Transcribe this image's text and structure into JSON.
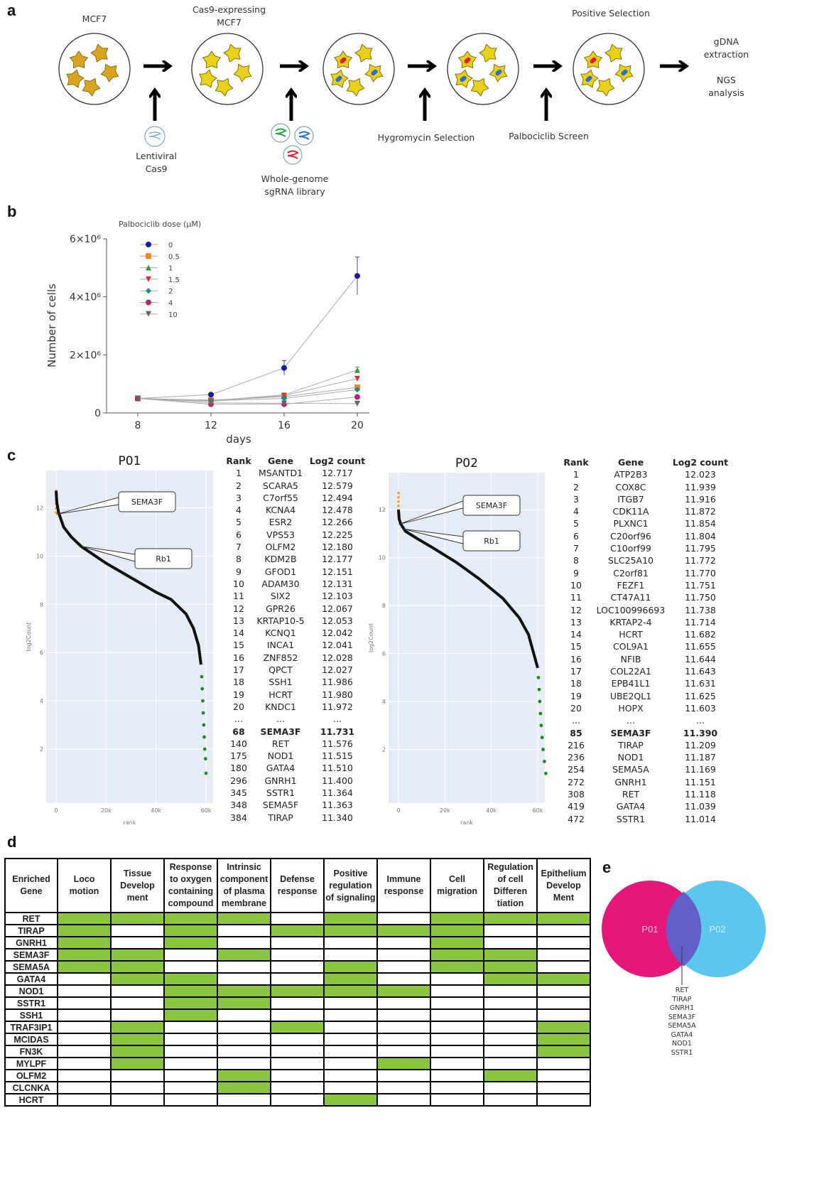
{
  "panels": {
    "a": "a",
    "b": "b",
    "c": "c",
    "d": "d",
    "e": "e"
  },
  "panel_a": {
    "stages": [
      "MCF7",
      "Cas9-expressing MCF7",
      "",
      "",
      "Positive Selection"
    ],
    "inputs": [
      "Lentiviral Cas9",
      "Whole-genome sgRNA library",
      "Hygromycin Selection",
      "Palbociclib Screen"
    ],
    "final": [
      "gDNA extraction",
      "NGS analysis"
    ],
    "colors": {
      "parental_cell": "#d9a520",
      "cas9_cell": "#e6d21a",
      "sgrna_red": "#e0202a",
      "sgrna_blue": "#2a6fd6",
      "sgrna_green": "#22a84a"
    }
  },
  "chart_data": [
    {
      "type": "line",
      "legend_title": "Palbociclib dose (µM)",
      "legend_position": "top-left",
      "xlabel": "days",
      "ylabel": "Number of cells",
      "x": [
        8,
        12,
        16,
        20
      ],
      "xticks": [
        "8",
        "12",
        "16",
        "20"
      ],
      "yticks": [
        "0",
        "2×10⁶",
        "4×10⁶",
        "6×10⁶"
      ],
      "ylim": [
        0,
        6000000
      ],
      "grid": false,
      "series": [
        {
          "name": "0",
          "color": "#1a1aa6",
          "marker": "circle",
          "values": [
            500000,
            630000,
            1550000,
            4720000
          ],
          "error": [
            0,
            0,
            250000,
            650000
          ]
        },
        {
          "name": "0.5",
          "color": "#f08a1c",
          "marker": "square",
          "values": [
            500000,
            440000,
            560000,
            880000
          ],
          "error": [
            0,
            0,
            60000,
            80000
          ]
        },
        {
          "name": "1",
          "color": "#2a9a3a",
          "marker": "triangle-up",
          "values": [
            500000,
            420000,
            620000,
            1480000
          ],
          "error": [
            0,
            0,
            60000,
            100000
          ]
        },
        {
          "name": "1.5",
          "color": "#d6303a",
          "marker": "triangle-down",
          "values": [
            500000,
            400000,
            600000,
            1180000
          ],
          "error": [
            0,
            0,
            60000,
            80000
          ]
        },
        {
          "name": "2",
          "color": "#1a8a8a",
          "marker": "diamond",
          "values": [
            500000,
            420000,
            500000,
            800000
          ],
          "error": [
            0,
            0,
            40000,
            60000
          ]
        },
        {
          "name": "4",
          "color": "#c0206a",
          "marker": "circle",
          "values": [
            500000,
            300000,
            300000,
            550000
          ],
          "error": [
            0,
            0,
            30000,
            40000
          ]
        },
        {
          "name": "10",
          "color": "#666666",
          "marker": "triangle-down",
          "values": [
            500000,
            350000,
            330000,
            320000
          ],
          "error": [
            0,
            0,
            30000,
            30000
          ]
        }
      ]
    },
    {
      "type": "scatter",
      "title": "P01",
      "xlabel": "rank",
      "ylabel": "log2Count",
      "xticks": [
        "0",
        "20k",
        "40k",
        "60k"
      ],
      "yticks": [
        "2",
        "4",
        "6",
        "8",
        "10",
        "12"
      ],
      "xlim": [
        0,
        60000
      ],
      "ylim": [
        0,
        13
      ],
      "curve": [
        [
          0,
          12.7
        ],
        [
          300,
          12.2
        ],
        [
          1000,
          11.8
        ],
        [
          3000,
          11.2
        ],
        [
          6000,
          10.8
        ],
        [
          10000,
          10.4
        ],
        [
          20000,
          9.7
        ],
        [
          30000,
          9.1
        ],
        [
          40000,
          8.5
        ],
        [
          46000,
          8.2
        ],
        [
          52000,
          7.6
        ],
        [
          55000,
          7.0
        ],
        [
          57000,
          6.3
        ],
        [
          58000,
          5.5
        ]
      ],
      "tail": [
        [
          58300,
          5.0
        ],
        [
          58500,
          4.5
        ],
        [
          58700,
          4.0
        ],
        [
          58900,
          3.5
        ],
        [
          59100,
          3.0
        ],
        [
          59300,
          2.5
        ],
        [
          59500,
          2.0
        ],
        [
          59800,
          1.6
        ],
        [
          60000,
          1.0
        ]
      ],
      "annotations": [
        "SEMA3F",
        "Rb1"
      ],
      "annotation_points": [
        [
          68,
          11.73
        ],
        [
          10000,
          10.4
        ]
      ],
      "colors": {
        "top": "#f0a020",
        "main": "#111111",
        "bottom": "#1a8a1a",
        "background": "#e5ecf6"
      }
    },
    {
      "type": "scatter",
      "title": "P02",
      "xlabel": "rank",
      "ylabel": "log2Count",
      "xticks": [
        "0",
        "20k",
        "40k",
        "60k"
      ],
      "yticks": [
        "2",
        "4",
        "6",
        "8",
        "10",
        "12"
      ],
      "xlim": [
        0,
        60000
      ],
      "ylim": [
        0,
        13
      ],
      "curve": [
        [
          0,
          12.0
        ],
        [
          300,
          11.6
        ],
        [
          1000,
          11.4
        ],
        [
          3000,
          11.1
        ],
        [
          8000,
          10.8
        ],
        [
          15000,
          10.4
        ],
        [
          25000,
          9.8
        ],
        [
          35000,
          9.1
        ],
        [
          45000,
          8.3
        ],
        [
          52000,
          7.5
        ],
        [
          56000,
          6.8
        ],
        [
          60000,
          5.4
        ]
      ],
      "tail": [
        [
          60300,
          5.0
        ],
        [
          60600,
          4.5
        ],
        [
          60900,
          4.0
        ],
        [
          61200,
          3.5
        ],
        [
          61500,
          3.0
        ],
        [
          61900,
          2.5
        ],
        [
          62300,
          2.0
        ],
        [
          62900,
          1.5
        ],
        [
          63500,
          1.0
        ]
      ],
      "annotations": [
        "SEMA3F",
        "Rb1"
      ],
      "annotation_points": [
        [
          85,
          11.39
        ],
        [
          2000,
          11.2
        ]
      ],
      "colors": {
        "top": "#f0a020",
        "main": "#111111",
        "bottom": "#1a8a1a",
        "background": "#e5ecf6"
      }
    }
  ],
  "table_p01": {
    "headers": [
      "Rank",
      "Gene",
      "Log2 count"
    ],
    "rows": [
      [
        "1",
        "MSANTD1",
        "12.717"
      ],
      [
        "2",
        "SCARA5",
        "12.579"
      ],
      [
        "3",
        "C7orf55",
        "12.494"
      ],
      [
        "4",
        "KCNA4",
        "12.478"
      ],
      [
        "5",
        "ESR2",
        "12.266"
      ],
      [
        "6",
        "VPS53",
        "12.225"
      ],
      [
        "7",
        "OLFM2",
        "12.180"
      ],
      [
        "8",
        "KDM2B",
        "12.177"
      ],
      [
        "9",
        "GFOD1",
        "12.151"
      ],
      [
        "10",
        "ADAM30",
        "12.131"
      ],
      [
        "11",
        "SIX2",
        "12.103"
      ],
      [
        "12",
        "GPR26",
        "12.067"
      ],
      [
        "13",
        "KRTAP10-5",
        "12.053"
      ],
      [
        "14",
        "KCNQ1",
        "12.042"
      ],
      [
        "15",
        "INCA1",
        "12.041"
      ],
      [
        "16",
        "ZNF852",
        "12.028"
      ],
      [
        "17",
        "QPCT",
        "12.027"
      ],
      [
        "18",
        "SSH1",
        "11.986"
      ],
      [
        "19",
        "HCRT",
        "11.980"
      ],
      [
        "20",
        "KNDC1",
        "11.972"
      ],
      [
        "...",
        "...",
        "..."
      ],
      [
        "68",
        "SEMA3F",
        "11.731"
      ],
      [
        "140",
        "RET",
        "11.576"
      ],
      [
        "175",
        "NOD1",
        "11.515"
      ],
      [
        "180",
        "GATA4",
        "11.510"
      ],
      [
        "296",
        "GNRH1",
        "11.400"
      ],
      [
        "345",
        "SSTR1",
        "11.364"
      ],
      [
        "348",
        "SEMA5F",
        "11.363"
      ],
      [
        "384",
        "TIRAP",
        "11.340"
      ]
    ],
    "bold_row": 21
  },
  "table_p02": {
    "headers": [
      "Rank",
      "Gene",
      "Log2 count"
    ],
    "rows": [
      [
        "1",
        "ATP2B3",
        "12.023"
      ],
      [
        "2",
        "COX8C",
        "11.939"
      ],
      [
        "3",
        "ITGB7",
        "11.916"
      ],
      [
        "4",
        "CDK11A",
        "11.872"
      ],
      [
        "5",
        "PLXNC1",
        "11.854"
      ],
      [
        "6",
        "C20orf96",
        "11.804"
      ],
      [
        "7",
        "C10orf99",
        "11.795"
      ],
      [
        "8",
        "SLC25A10",
        "11.772"
      ],
      [
        "9",
        "C2orf81",
        "11.770"
      ],
      [
        "10",
        "FEZF1",
        "11.751"
      ],
      [
        "11",
        "CT47A11",
        "11.750"
      ],
      [
        "12",
        "LOC100996693",
        "11.738"
      ],
      [
        "13",
        "KRTAP2-4",
        "11.714"
      ],
      [
        "14",
        "HCRT",
        "11.682"
      ],
      [
        "15",
        "COL9A1",
        "11.655"
      ],
      [
        "16",
        "NFIB",
        "11.644"
      ],
      [
        "17",
        "COL22A1",
        "11.643"
      ],
      [
        "18",
        "EPB41L1",
        "11.631"
      ],
      [
        "19",
        "UBE2QL1",
        "11.625"
      ],
      [
        "20",
        "HOPX",
        "11.603"
      ],
      [
        "...",
        "...",
        "..."
      ],
      [
        "85",
        "SEMA3F",
        "11.390"
      ],
      [
        "216",
        "TIRAP",
        "11.209"
      ],
      [
        "236",
        "NOD1",
        "11.187"
      ],
      [
        "254",
        "SEMA5A",
        "11.169"
      ],
      [
        "272",
        "GNRH1",
        "11.151"
      ],
      [
        "308",
        "RET",
        "11.118"
      ],
      [
        "419",
        "GATA4",
        "11.039"
      ],
      [
        "472",
        "SSTR1",
        "11.014"
      ]
    ],
    "bold_row": 21
  },
  "enrichment": {
    "highlight_color": "#8cc63f",
    "columns": [
      "Enriched Gene",
      "Loco motion",
      "Tissue Develop ment",
      "Response to oxygen containing compound",
      "Intrinsic component of plasma membrane",
      "Defense response",
      "Positive regulation of signaling",
      "Immune response",
      "Cell migration",
      "Regulation of cell Differen tiation",
      "Epithelium Develop Ment"
    ],
    "rows": [
      {
        "gene": "RET",
        "flags": [
          1,
          1,
          1,
          1,
          0,
          1,
          0,
          1,
          1,
          1
        ]
      },
      {
        "gene": "TIRAP",
        "flags": [
          1,
          0,
          1,
          0,
          1,
          1,
          1,
          1,
          0,
          0
        ]
      },
      {
        "gene": "GNRH1",
        "flags": [
          1,
          0,
          1,
          0,
          0,
          0,
          0,
          1,
          0,
          0
        ]
      },
      {
        "gene": "SEMA3F",
        "flags": [
          1,
          1,
          0,
          1,
          0,
          0,
          0,
          1,
          1,
          0
        ]
      },
      {
        "gene": "SEMA5A",
        "flags": [
          1,
          1,
          0,
          0,
          0,
          1,
          0,
          1,
          1,
          0
        ]
      },
      {
        "gene": "GATA4",
        "flags": [
          0,
          1,
          1,
          0,
          0,
          1,
          0,
          0,
          1,
          1
        ]
      },
      {
        "gene": "NOD1",
        "flags": [
          0,
          0,
          1,
          1,
          1,
          1,
          1,
          0,
          0,
          0
        ]
      },
      {
        "gene": "SSTR1",
        "flags": [
          0,
          0,
          1,
          1,
          0,
          0,
          0,
          0,
          0,
          0
        ]
      },
      {
        "gene": "SSH1",
        "flags": [
          0,
          0,
          1,
          0,
          0,
          0,
          0,
          0,
          0,
          0
        ]
      },
      {
        "gene": "TRAF3IP1",
        "flags": [
          0,
          1,
          0,
          0,
          1,
          0,
          0,
          0,
          0,
          1
        ]
      },
      {
        "gene": "MCIDAS",
        "flags": [
          0,
          1,
          0,
          0,
          0,
          0,
          0,
          0,
          0,
          1
        ]
      },
      {
        "gene": "FN3K",
        "flags": [
          0,
          1,
          0,
          0,
          0,
          0,
          0,
          0,
          0,
          1
        ]
      },
      {
        "gene": "MYLPF",
        "flags": [
          0,
          1,
          0,
          0,
          0,
          0,
          1,
          0,
          0,
          0
        ]
      },
      {
        "gene": "OLFM2",
        "flags": [
          0,
          0,
          0,
          1,
          0,
          0,
          0,
          0,
          1,
          0
        ]
      },
      {
        "gene": "CLCNKA",
        "flags": [
          0,
          0,
          0,
          1,
          0,
          0,
          0,
          0,
          0,
          0
        ]
      },
      {
        "gene": "HCRT",
        "flags": [
          0,
          0,
          0,
          0,
          0,
          1,
          0,
          0,
          0,
          0
        ]
      }
    ]
  },
  "venn": {
    "left": "P01",
    "right": "P02",
    "colors": {
      "left": "#e6177a",
      "right": "#5cc6ee",
      "overlap": "#6060c8"
    },
    "shared_genes": [
      "RET",
      "TIRAP",
      "GNRH1",
      "SEMA3F",
      "SEMA5A",
      "GATA4",
      "NOD1",
      "SSTR1"
    ]
  }
}
